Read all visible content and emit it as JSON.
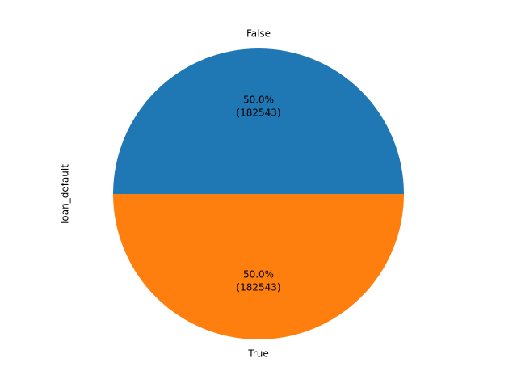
{
  "chart_data": {
    "type": "pie",
    "ylabel": "loan_default",
    "slices": [
      {
        "label": "False",
        "value": 182543,
        "pct_label": "50.0%",
        "count_label": "(182543)",
        "color": "#1f77b4"
      },
      {
        "label": "True",
        "value": 182543,
        "pct_label": "50.0%",
        "count_label": "(182543)",
        "color": "#ff7f0e"
      }
    ],
    "start_angle": "0 degrees (3 o'clock), counter-clockwise"
  }
}
